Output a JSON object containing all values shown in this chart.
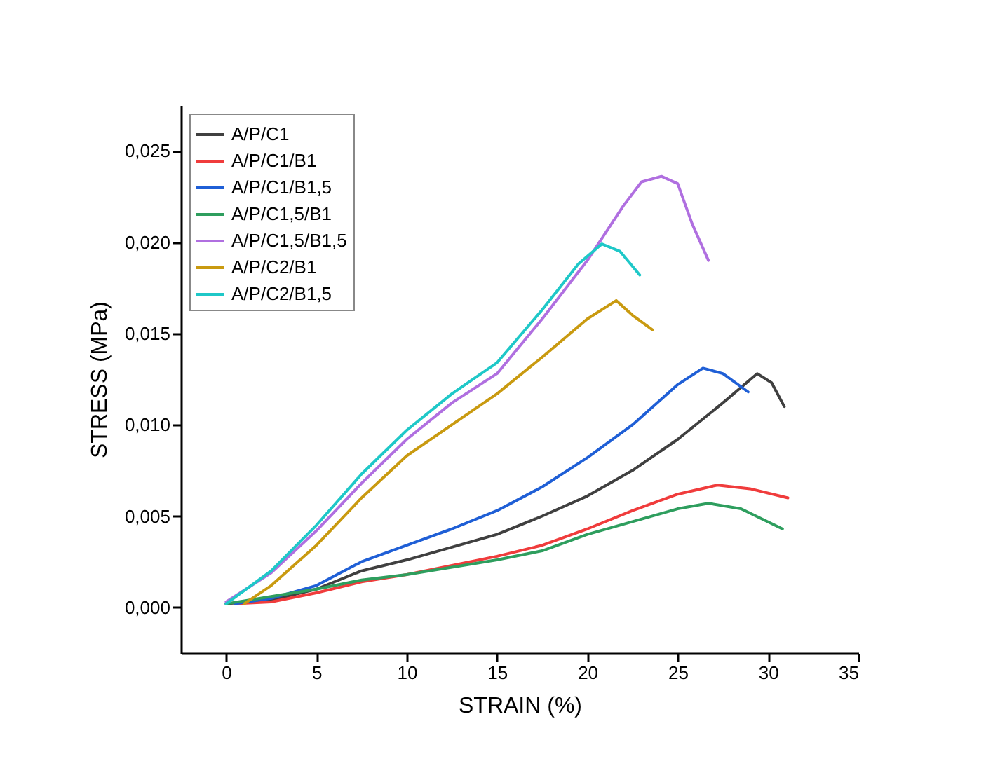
{
  "chart_data": {
    "type": "line",
    "xlabel": "STRAIN (%)",
    "ylabel": "STRESS (MPa)",
    "xlim": [
      -2.5,
      35
    ],
    "xticks": [
      0,
      5,
      10,
      15,
      20,
      25,
      30,
      35
    ],
    "ylim": [
      -0.0025,
      0.0275
    ],
    "yticks": [
      {
        "value": 0,
        "label": "0,000"
      },
      {
        "value": 0.005,
        "label": "0,005"
      },
      {
        "value": 0.01,
        "label": "0,010"
      },
      {
        "value": 0.015,
        "label": "0,015"
      },
      {
        "value": 0.02,
        "label": "0,020"
      },
      {
        "value": 0.025,
        "label": "0,025"
      }
    ],
    "grid": false,
    "legend": "top left",
    "line_style": "solid",
    "series": [
      {
        "name": "A/P/C1",
        "color": "#404040",
        "x": [
          0,
          2.5,
          5,
          7.5,
          10,
          12.5,
          15,
          17.5,
          20,
          22.5,
          25,
          27.5,
          29.4,
          30.2,
          30.9
        ],
        "values": [
          0.0002,
          0.0004,
          0.001,
          0.002,
          0.0026,
          0.0033,
          0.004,
          0.005,
          0.0061,
          0.0075,
          0.0092,
          0.0112,
          0.0128,
          0.0123,
          0.011
        ]
      },
      {
        "name": "A/P/C1/B1",
        "color": "#f03c3c",
        "x": [
          0.5,
          2.5,
          5,
          7.5,
          10,
          12.5,
          15,
          17.5,
          20,
          22.5,
          25,
          27.2,
          29,
          31.1
        ],
        "values": [
          0.0002,
          0.0003,
          0.0008,
          0.0014,
          0.0018,
          0.0023,
          0.0028,
          0.0034,
          0.0043,
          0.0053,
          0.0062,
          0.0067,
          0.0065,
          0.006
        ]
      },
      {
        "name": "A/P/C1/B1,5",
        "color": "#1f5fd6",
        "x": [
          0.5,
          2.5,
          5,
          7.5,
          10,
          12.5,
          15,
          17.5,
          20,
          22.5,
          25,
          26.4,
          27.5,
          28.9
        ],
        "values": [
          0.0002,
          0.0005,
          0.0012,
          0.0025,
          0.0034,
          0.0043,
          0.0053,
          0.0066,
          0.0082,
          0.01,
          0.0122,
          0.0131,
          0.0128,
          0.0118
        ]
      },
      {
        "name": "A/P/C1,5/B1",
        "color": "#2e9e5e",
        "x": [
          0,
          2.5,
          5,
          7.5,
          10,
          12.5,
          15,
          17.5,
          20,
          22.5,
          25,
          26.7,
          28.5,
          30.8
        ],
        "values": [
          0.0002,
          0.0006,
          0.001,
          0.0015,
          0.0018,
          0.0022,
          0.0026,
          0.0031,
          0.004,
          0.0047,
          0.0054,
          0.0057,
          0.0054,
          0.0043
        ]
      },
      {
        "name": "A/P/C1,5/B1,5",
        "color": "#b06fe0",
        "x": [
          0,
          2.5,
          5,
          7.5,
          10,
          12.5,
          15,
          17.5,
          20,
          22,
          23,
          24.1,
          25,
          25.8,
          26.7
        ],
        "values": [
          0.0003,
          0.0019,
          0.0042,
          0.0068,
          0.0092,
          0.0112,
          0.0128,
          0.0158,
          0.019,
          0.022,
          0.0233,
          0.0236,
          0.0232,
          0.021,
          0.019
        ]
      },
      {
        "name": "A/P/C2/B1",
        "color": "#c99a10",
        "x": [
          1,
          2.5,
          5,
          7.5,
          10,
          12.5,
          15,
          17.5,
          20,
          21.6,
          22.5,
          23.6
        ],
        "values": [
          0.0002,
          0.0012,
          0.0034,
          0.006,
          0.0083,
          0.01,
          0.0117,
          0.0137,
          0.0158,
          0.0168,
          0.016,
          0.0152
        ]
      },
      {
        "name": "A/P/C2/B1,5",
        "color": "#1fc8c8",
        "x": [
          0,
          2.5,
          5,
          7.5,
          10,
          12.5,
          15,
          17.5,
          19.5,
          20.8,
          21.8,
          22.9
        ],
        "values": [
          0.0002,
          0.002,
          0.0045,
          0.0073,
          0.0097,
          0.0117,
          0.0134,
          0.0163,
          0.0188,
          0.0199,
          0.0195,
          0.0182
        ]
      }
    ]
  }
}
